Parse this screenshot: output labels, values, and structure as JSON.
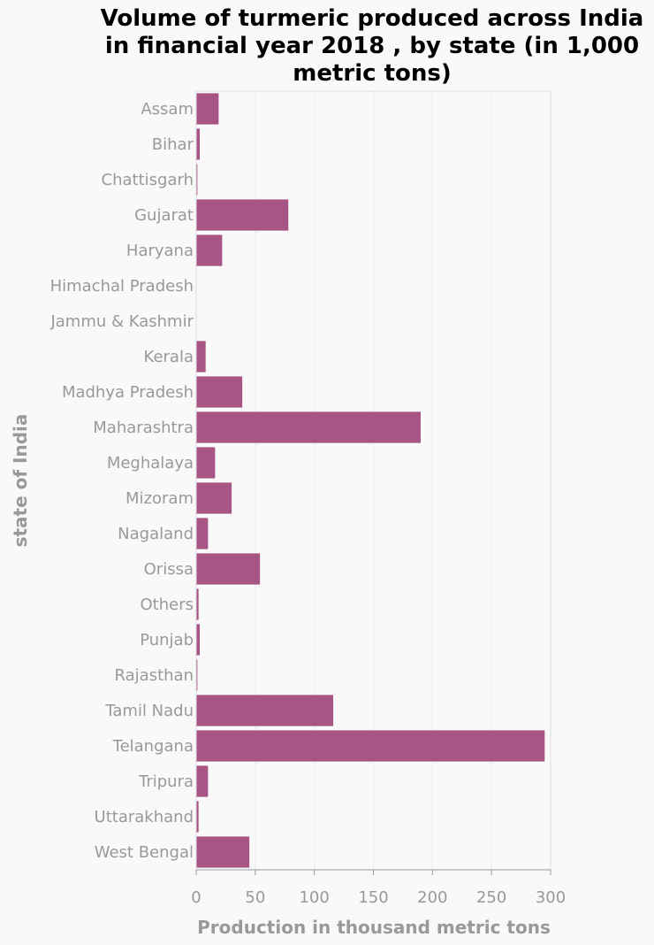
{
  "chart_data": {
    "type": "bar",
    "orientation": "horizontal",
    "title": "Volume of turmeric produced across India in financial year 2018 , by state (in 1,000 metric tons)",
    "title_lines": [
      "Volume of turmeric produced across India",
      "in financial year 2018 , by state (in 1,000",
      "metric tons)"
    ],
    "xlabel": "Production in thousand metric tons",
    "ylabel": "state of India",
    "xlim": [
      0,
      300
    ],
    "xticks": [
      0,
      50,
      100,
      150,
      200,
      250,
      300
    ],
    "grid": true,
    "color": "#a85586",
    "categories": [
      "Assam",
      "Bihar",
      "Chattisgarh",
      "Gujarat",
      "Haryana",
      "Himachal Pradesh",
      "Jammu & Kashmir",
      "Kerala",
      "Madhya Pradesh",
      "Maharashtra",
      "Meghalaya",
      "Mizoram",
      "Nagaland",
      "Orissa",
      "Others",
      "Punjab",
      "Rajasthan",
      "Tamil Nadu",
      "Telangana",
      "Tripura",
      "Uttarakhand",
      "West Bengal"
    ],
    "values": [
      19,
      3,
      1,
      78,
      22,
      0,
      0,
      8,
      39,
      190,
      16,
      30,
      10,
      54,
      2,
      3,
      1,
      116,
      295,
      10,
      2,
      45
    ]
  }
}
